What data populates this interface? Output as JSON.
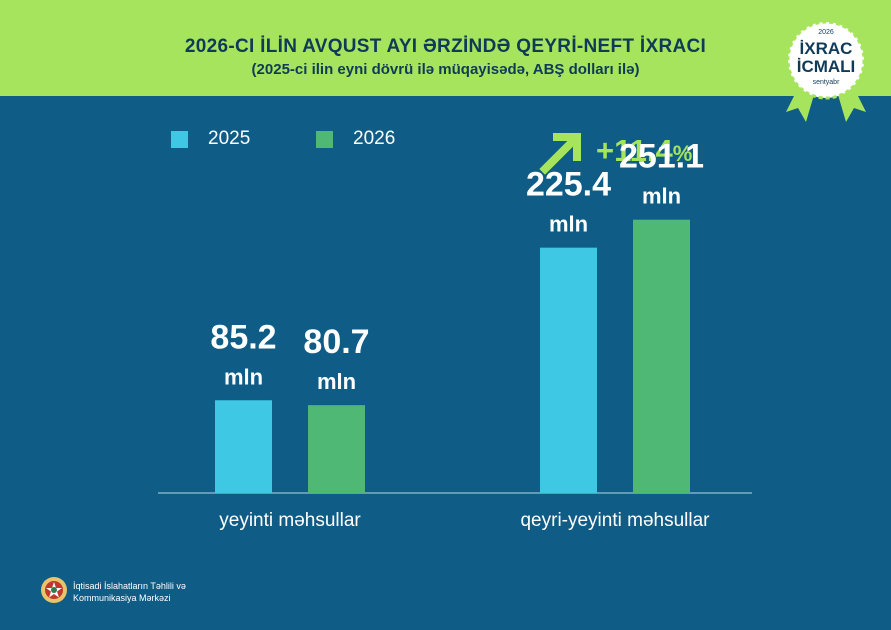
{
  "header": {
    "title": "2026-CI İLİN AVQUST AYI ƏRZİNDƏ QEYRİ-NEFT İXRACI",
    "subtitle": "(2025-ci ilin eyni dövrü ilə müqayisədə, ABŞ dolları ilə)"
  },
  "badge": {
    "year": "2026",
    "line1": "İXRAC",
    "line2": "İCMALI",
    "month": "sentyabr"
  },
  "growth": {
    "value": "+11.4",
    "unit": "%",
    "icon": "arrow-up-right-icon"
  },
  "footer": {
    "line1": "İqtisadi İslahatların Təhlili və",
    "line2": "Kommunikasiya Mərkəzi"
  },
  "colors": {
    "background": "#0f5d87",
    "header": "#a7e45d",
    "series_2025": "#3fc8e4",
    "series_2026": "#4fb874",
    "accent": "#a7e45d"
  },
  "chart_data": {
    "type": "bar",
    "categories": [
      "yeyinti məhsullar",
      "qeyri-yeyinti məhsullar"
    ],
    "series": [
      {
        "name": "2025",
        "values": [
          85.2,
          225.4
        ],
        "labels": [
          "85.2",
          "225.4"
        ]
      },
      {
        "name": "2026",
        "values": [
          80.7,
          251.1
        ],
        "labels": [
          "80.7",
          "251.1"
        ]
      }
    ],
    "value_unit": "mln",
    "legend_position": "top-left",
    "grid": false
  }
}
